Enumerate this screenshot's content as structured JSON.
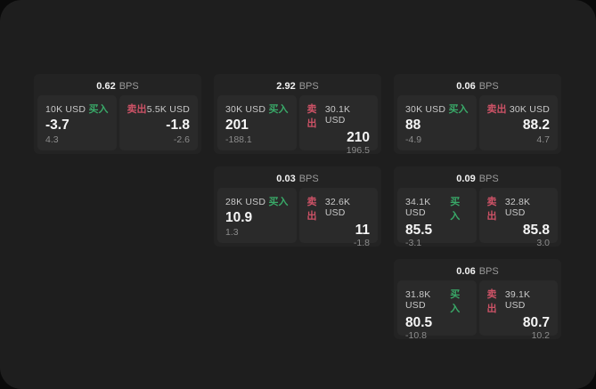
{
  "labels": {
    "bps": "BPS",
    "buy": "买入",
    "sell": "卖出"
  },
  "colors": {
    "window_bg": "#1e1e1e",
    "outer_bg": "#0a0a0a",
    "card_bg": "#232323",
    "panel_bg": "#2a2a2a",
    "buy_green": "#39a968",
    "sell_red": "#cc5266"
  },
  "cards": [
    {
      "bps": "0.62",
      "row": 1,
      "col": 1,
      "buy": {
        "amount": "10K USD",
        "price": "-3.7",
        "delta": "4.3"
      },
      "sell": {
        "amount": "5.5K USD",
        "price": "-1.8",
        "delta": "-2.6"
      }
    },
    {
      "bps": "2.92",
      "row": 1,
      "col": 2,
      "buy": {
        "amount": "30K USD",
        "price": "201",
        "delta": "-188.1"
      },
      "sell": {
        "amount": "30.1K USD",
        "price": "210",
        "delta": "196.5"
      }
    },
    {
      "bps": "0.06",
      "row": 1,
      "col": 3,
      "buy": {
        "amount": "30K USD",
        "price": "88",
        "delta": "-4.9"
      },
      "sell": {
        "amount": "30K USD",
        "price": "88.2",
        "delta": "4.7"
      }
    },
    {
      "bps": "0.03",
      "row": 2,
      "col": 2,
      "buy": {
        "amount": "28K USD",
        "price": "10.9",
        "delta": "1.3"
      },
      "sell": {
        "amount": "32.6K USD",
        "price": "11",
        "delta": "-1.8"
      }
    },
    {
      "bps": "0.09",
      "row": 2,
      "col": 3,
      "buy": {
        "amount": "34.1K USD",
        "price": "85.5",
        "delta": "-3.1"
      },
      "sell": {
        "amount": "32.8K USD",
        "price": "85.8",
        "delta": "3.0"
      }
    },
    {
      "bps": "0.06",
      "row": 3,
      "col": 3,
      "buy": {
        "amount": "31.8K USD",
        "price": "80.5",
        "delta": "-10.8"
      },
      "sell": {
        "amount": "39.1K USD",
        "price": "80.7",
        "delta": "10.2"
      }
    }
  ]
}
